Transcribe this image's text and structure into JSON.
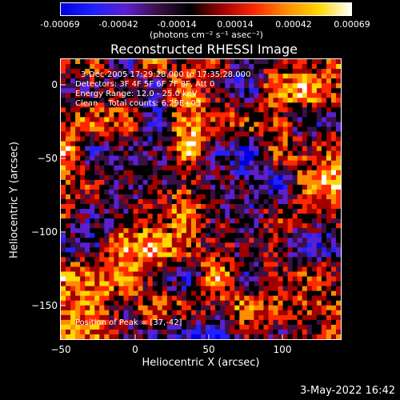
{
  "colorbar": {
    "ticks": [
      "-0.00069",
      "-0.00042",
      "-0.00014",
      "0.00014",
      "0.00042",
      "0.00069"
    ],
    "units": "(photons cm⁻² s⁻¹ asec⁻²)",
    "colors": [
      "#0000e0",
      "#2020ff",
      "#5a20d0",
      "#3a1048",
      "#000000",
      "#a00000",
      "#ff2800",
      "#ff8c00",
      "#ffd800",
      "#ffffff"
    ]
  },
  "title": "Reconstructed RHESSI Image",
  "annotations": {
    "time_range": "3-Dec-2005 17:29:28.000 to 17:35:28.000",
    "detectors": "Detectors: 3F 4F 5F 6F 7F 8F, Att 0",
    "energy_range": "Energy Range: 12.0 - 25.0 keV",
    "method_counts": "Clean    Total counts: 6.29E+03",
    "peak_position": "Position of Peak = [37,-42]"
  },
  "x_axis": {
    "label": "Heliocentric X (arcsec)",
    "ticks": [
      "−50",
      "0",
      "50",
      "100"
    ],
    "range": [
      -50,
      140
    ]
  },
  "y_axis": {
    "label": "Heliocentric Y (arcsec)",
    "ticks": [
      "0",
      "−50",
      "−100",
      "−150"
    ],
    "range": [
      -172,
      18
    ]
  },
  "peak": {
    "x": 37,
    "y": -42
  },
  "footer": {
    "timestamp": "3-May-2022 16:42"
  }
}
